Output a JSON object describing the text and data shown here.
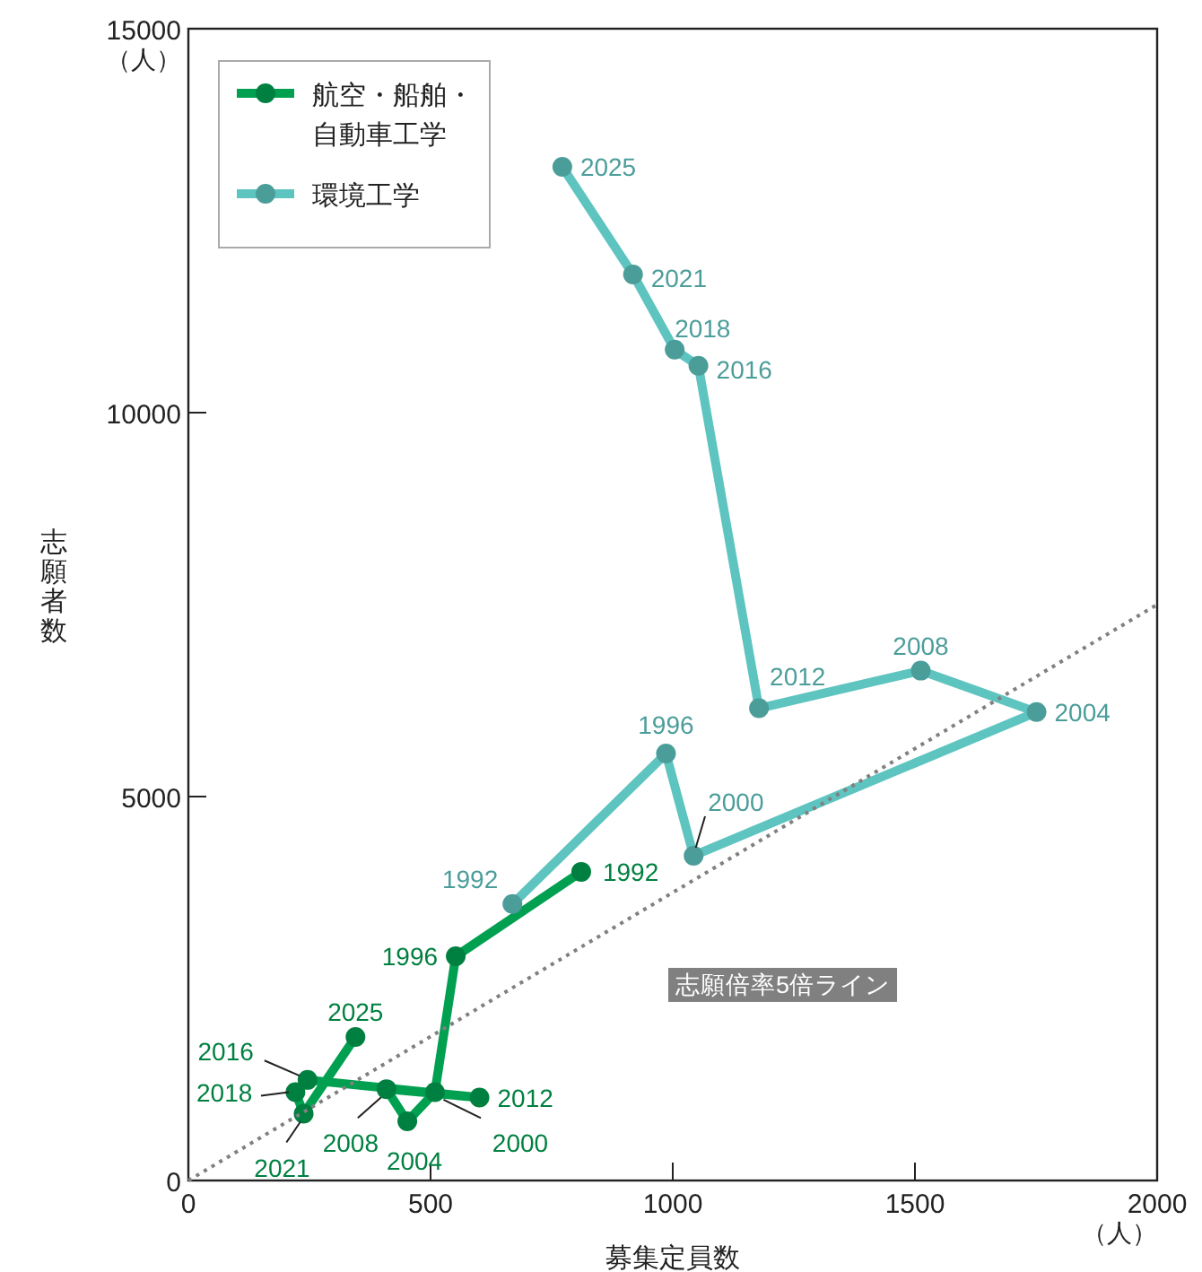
{
  "chart_data": {
    "type": "line",
    "xlabel": "募集定員数",
    "ylabel": "志願者数",
    "xlim": [
      0,
      2000
    ],
    "ylim": [
      0,
      15000
    ],
    "xticks": [
      0,
      500,
      1000,
      1500,
      2000
    ],
    "yticks": [
      0,
      5000,
      10000,
      15000
    ],
    "grid": false,
    "legend": "top left",
    "marker": "circle",
    "line_style": "solid",
    "series": [
      {
        "name": "航空・船舶・自動車工学",
        "color": "#00a050",
        "x": [
          811,
          552,
          509,
          452,
          409,
          601,
          246,
          221,
          238,
          345
        ],
        "values": [
          4020,
          2920,
          1150,
          770,
          1190,
          1080,
          1310,
          1150,
          870,
          1870
        ]
      },
      {
        "name": "環境工学",
        "color": "#5ec4c0",
        "x": [
          669,
          986,
          1043,
          1751,
          1512,
          1178,
          1053,
          1004,
          918,
          772
        ],
        "values": [
          3600,
          5560,
          4230,
          6100,
          6640,
          6150,
          10610,
          10820,
          11800,
          13200
        ]
      },
      {
        "name": "志願倍率5倍ライン",
        "type": "line",
        "color": "#808080",
        "marker": "none",
        "line_style": "dotted",
        "x": [
          0,
          2000
        ],
        "values": [
          0,
          7500
        ]
      }
    ],
    "annotations": [
      "（人）",
      "（人）",
      {
        "text": "1992",
        "x": 811,
        "y": 4020
      },
      {
        "text": "1996",
        "x": 552,
        "y": 2920
      },
      {
        "text": "2000",
        "x": 509,
        "y": 1150
      },
      {
        "text": "2004",
        "x": 452,
        "y": 770
      },
      {
        "text": "2008",
        "x": 409,
        "y": 1190
      },
      {
        "text": "2012",
        "x": 601,
        "y": 1080
      },
      {
        "text": "2016",
        "x": 246,
        "y": 1310
      },
      {
        "text": "2018",
        "x": 221,
        "y": 1150
      },
      {
        "text": "2021",
        "x": 238,
        "y": 870
      },
      {
        "text": "2025",
        "x": 345,
        "y": 1870
      },
      {
        "text": "1992",
        "x": 669,
        "y": 3600
      },
      {
        "text": "1996",
        "x": 986,
        "y": 5560
      },
      {
        "text": "2000",
        "x": 1043,
        "y": 4230
      },
      {
        "text": "2004",
        "x": 1751,
        "y": 6100
      },
      {
        "text": "2008",
        "x": 1512,
        "y": 6640
      },
      {
        "text": "2012",
        "x": 1178,
        "y": 6150
      },
      {
        "text": "2016",
        "x": 1053,
        "y": 10610
      },
      {
        "text": "2018",
        "x": 1004,
        "y": 10820
      },
      {
        "text": "2021",
        "x": 918,
        "y": 11800
      },
      {
        "text": "2025",
        "x": 772,
        "y": 13200
      }
    ]
  }
}
